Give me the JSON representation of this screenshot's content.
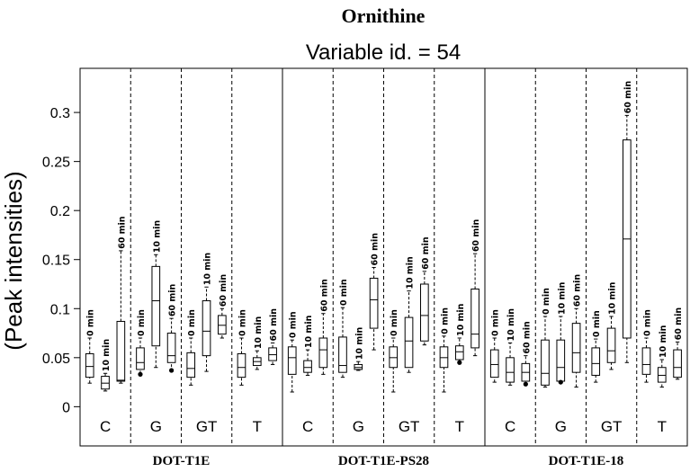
{
  "chart_data": {
    "type": "boxplot",
    "title": "Ornithine",
    "subtitle": "Variable id. = 54",
    "ylabel": "(Peak intensities)",
    "ylim": [
      -0.04,
      0.345
    ],
    "yticks": [
      0,
      0.05,
      0.1,
      0.15,
      0.2,
      0.25,
      0.3
    ],
    "ytick_labels": [
      "0",
      "0.05",
      "0.1",
      "0.15",
      "0.2",
      "0.25",
      "0.3"
    ],
    "groups": [
      {
        "name": "DOT-T1E",
        "categories": [
          {
            "name": "C",
            "boxes": [
              {
                "label": "0 min",
                "min": 0.024,
                "q1": 0.03,
                "median": 0.041,
                "q3": 0.054,
                "max": 0.07,
                "outlier": null
              },
              {
                "label": "10 min",
                "min": 0.016,
                "q1": 0.018,
                "median": 0.024,
                "q3": 0.031,
                "max": 0.034,
                "outlier": null
              },
              {
                "label": "60 min",
                "min": 0.024,
                "q1": 0.026,
                "median": 0.027,
                "q3": 0.087,
                "max": 0.159,
                "outlier": null
              }
            ]
          },
          {
            "name": "G",
            "boxes": [
              {
                "label": "0 min",
                "min": 0.034,
                "q1": 0.038,
                "median": 0.045,
                "q3": 0.06,
                "max": 0.07,
                "outlier": 0.033
              },
              {
                "label": "10 min",
                "min": 0.04,
                "q1": 0.062,
                "median": 0.108,
                "q3": 0.143,
                "max": 0.155,
                "outlier": null
              },
              {
                "label": "60 min",
                "min": 0.036,
                "q1": 0.045,
                "median": 0.052,
                "q3": 0.075,
                "max": 0.09,
                "outlier": 0.037
              }
            ]
          },
          {
            "name": "GT",
            "boxes": [
              {
                "label": "0 min",
                "min": 0.022,
                "q1": 0.03,
                "median": 0.039,
                "q3": 0.055,
                "max": 0.07,
                "outlier": null
              },
              {
                "label": "10 min",
                "min": 0.036,
                "q1": 0.052,
                "median": 0.077,
                "q3": 0.108,
                "max": 0.122,
                "outlier": null
              },
              {
                "label": "60 min",
                "min": 0.07,
                "q1": 0.074,
                "median": 0.083,
                "q3": 0.093,
                "max": 0.1,
                "outlier": null
              }
            ]
          },
          {
            "name": "T",
            "boxes": [
              {
                "label": "0 min",
                "min": 0.022,
                "q1": 0.03,
                "median": 0.04,
                "q3": 0.054,
                "max": 0.07,
                "outlier": null
              },
              {
                "label": "10 min",
                "min": 0.038,
                "q1": 0.042,
                "median": 0.046,
                "q3": 0.05,
                "max": 0.057,
                "outlier": null
              },
              {
                "label": "60 min",
                "min": 0.043,
                "q1": 0.047,
                "median": 0.053,
                "q3": 0.06,
                "max": 0.065,
                "outlier": null
              }
            ]
          }
        ]
      },
      {
        "name": "DOT-T1E-PS28",
        "categories": [
          {
            "name": "C",
            "boxes": [
              {
                "label": "0 min",
                "min": 0.015,
                "q1": 0.033,
                "median": 0.05,
                "q3": 0.061,
                "max": 0.068,
                "outlier": null
              },
              {
                "label": "10 min",
                "min": 0.032,
                "q1": 0.035,
                "median": 0.04,
                "q3": 0.047,
                "max": 0.058,
                "outlier": null
              },
              {
                "label": "60 min",
                "min": 0.033,
                "q1": 0.04,
                "median": 0.058,
                "q3": 0.07,
                "max": 0.095,
                "outlier": null
              }
            ]
          },
          {
            "name": "G",
            "boxes": [
              {
                "label": "0 min",
                "min": 0.03,
                "q1": 0.035,
                "median": 0.042,
                "q3": 0.071,
                "max": 0.101,
                "outlier": null
              },
              {
                "label": "10 min",
                "min": 0.037,
                "q1": 0.038,
                "median": 0.04,
                "q3": 0.043,
                "max": 0.046,
                "outlier": null
              },
              {
                "label": "60 min",
                "min": 0.058,
                "q1": 0.08,
                "median": 0.109,
                "q3": 0.131,
                "max": 0.142,
                "outlier": null
              }
            ]
          },
          {
            "name": "GT",
            "boxes": [
              {
                "label": "0 min",
                "min": 0.015,
                "q1": 0.04,
                "median": 0.05,
                "q3": 0.061,
                "max": 0.07,
                "outlier": null
              },
              {
                "label": "10 min",
                "min": 0.035,
                "q1": 0.04,
                "median": 0.067,
                "q3": 0.091,
                "max": 0.118,
                "outlier": null
              },
              {
                "label": "60 min",
                "min": 0.063,
                "q1": 0.067,
                "median": 0.093,
                "q3": 0.125,
                "max": 0.138,
                "outlier": null
              }
            ]
          },
          {
            "name": "T",
            "boxes": [
              {
                "label": "0 min",
                "min": 0.015,
                "q1": 0.04,
                "median": 0.05,
                "q3": 0.061,
                "max": 0.072,
                "outlier": null
              },
              {
                "label": "10 min",
                "min": 0.046,
                "q1": 0.048,
                "median": 0.056,
                "q3": 0.062,
                "max": 0.07,
                "outlier": 0.045
              },
              {
                "label": "60 min",
                "min": 0.052,
                "q1": 0.06,
                "median": 0.074,
                "q3": 0.12,
                "max": 0.156,
                "outlier": null
              }
            ]
          }
        ]
      },
      {
        "name": "DOT-T1E-18",
        "categories": [
          {
            "name": "C",
            "boxes": [
              {
                "label": "0 min",
                "min": 0.025,
                "q1": 0.03,
                "median": 0.043,
                "q3": 0.058,
                "max": 0.07,
                "outlier": null
              },
              {
                "label": "10 min",
                "min": 0.022,
                "q1": 0.025,
                "median": 0.035,
                "q3": 0.05,
                "max": 0.065,
                "outlier": null
              },
              {
                "label": "60 min",
                "min": 0.022,
                "q1": 0.026,
                "median": 0.035,
                "q3": 0.044,
                "max": 0.052,
                "outlier": 0.023
              }
            ]
          },
          {
            "name": "G",
            "boxes": [
              {
                "label": "0 min",
                "min": 0.02,
                "q1": 0.022,
                "median": 0.034,
                "q3": 0.068,
                "max": 0.092,
                "outlier": null
              },
              {
                "label": "10 min",
                "min": 0.026,
                "q1": 0.026,
                "median": 0.04,
                "q3": 0.068,
                "max": 0.092,
                "outlier": 0.025
              },
              {
                "label": "60 min",
                "min": 0.02,
                "q1": 0.035,
                "median": 0.055,
                "q3": 0.085,
                "max": 0.1,
                "outlier": null
              }
            ]
          },
          {
            "name": "GT",
            "boxes": [
              {
                "label": "0 min",
                "min": 0.025,
                "q1": 0.032,
                "median": 0.044,
                "q3": 0.06,
                "max": 0.069,
                "outlier": null
              },
              {
                "label": "10 min",
                "min": 0.038,
                "q1": 0.045,
                "median": 0.057,
                "q3": 0.08,
                "max": 0.092,
                "outlier": null
              },
              {
                "label": "60 min",
                "min": 0.045,
                "q1": 0.07,
                "median": 0.171,
                "q3": 0.272,
                "max": 0.297,
                "outlier": null
              }
            ]
          },
          {
            "name": "T",
            "boxes": [
              {
                "label": "0 min",
                "min": 0.025,
                "q1": 0.033,
                "median": 0.043,
                "q3": 0.06,
                "max": 0.07,
                "outlier": null
              },
              {
                "label": "10 min",
                "min": 0.02,
                "q1": 0.025,
                "median": 0.032,
                "q3": 0.04,
                "max": 0.048,
                "outlier": null
              },
              {
                "label": "60 min",
                "min": 0.028,
                "q1": 0.03,
                "median": 0.04,
                "q3": 0.058,
                "max": 0.066,
                "outlier": null
              }
            ]
          }
        ]
      }
    ]
  }
}
